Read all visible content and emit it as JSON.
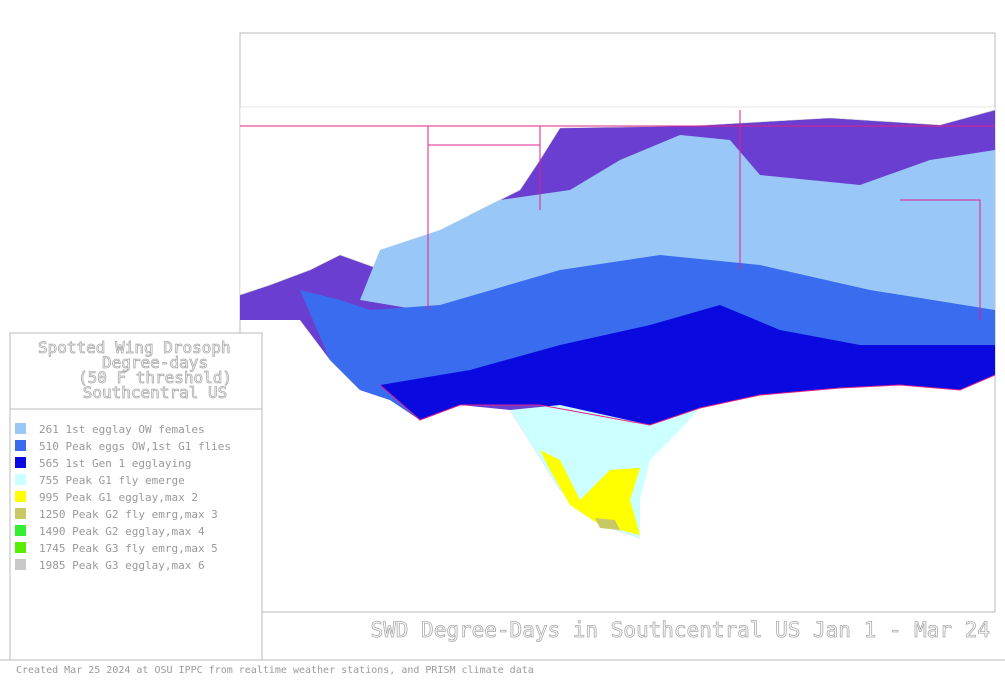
{
  "legend": {
    "title": [
      "Spotted Wing Drosoph",
      "Degree-days",
      "(50 F threshold)",
      "Southcentral US"
    ],
    "items": [
      {
        "label": "261 1st egglay OW females",
        "color": "#99c8f8"
      },
      {
        "label": "510 Peak eggs OW,1st G1 flies",
        "color": "#3a6cf0"
      },
      {
        "label": "565 1st Gen 1 egglaying",
        "color": "#0a0ae0"
      },
      {
        "label": "755 Peak G1 fly emerge",
        "color": "#ccffff"
      },
      {
        "label": "995 Peak G1 egglay,max 2",
        "color": "#ffff00"
      },
      {
        "label": "1250 Peak G2 fly emrg,max 3",
        "color": "#c8c864"
      },
      {
        "label": "1490 Peak G2 egglay,max 4",
        "color": "#33ee33"
      },
      {
        "label": "1745 Peak G3 fly emrg,max 5",
        "color": "#55ee00"
      },
      {
        "label": "1985 Peak G3 egglay,max 6",
        "color": "#c8c8c8"
      }
    ]
  },
  "map_title": "SWD Degree-Days in Southcentral US Jan 1 - Mar 24",
  "footer": "Created Mar 25 2024 at OSU IPPC from  realtime weather stations, and PRISM climate data"
}
